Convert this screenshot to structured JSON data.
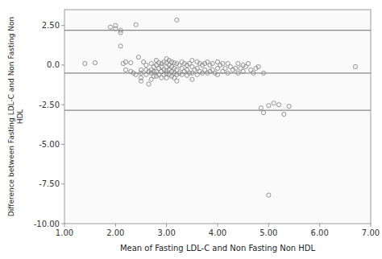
{
  "chart_data": {
    "type": "scatter",
    "title": "",
    "xlabel": "Mean of Fasting LDL-C and Non Fasting Non HDL",
    "ylabel": "Difference between Fasting LDL-C and Non Fasting Non\nHDL",
    "xlim": [
      1.0,
      7.0
    ],
    "ylim": [
      -10.0,
      3.5
    ],
    "xticks": [
      {
        "value": 1.0,
        "label": "1.00"
      },
      {
        "value": 2.0,
        "label": "2.00"
      },
      {
        "value": 3.0,
        "label": "3.00"
      },
      {
        "value": 4.0,
        "label": "4.00"
      },
      {
        "value": 5.0,
        "label": "5.00"
      },
      {
        "value": 6.0,
        "label": "6.00"
      },
      {
        "value": 7.0,
        "label": "7.00"
      }
    ],
    "yticks": [
      {
        "value": -10.0,
        "label": "-10.00"
      },
      {
        "value": -7.5,
        "label": "-7.50"
      },
      {
        "value": -5.0,
        "label": "-5.00"
      },
      {
        "value": -2.5,
        "label": "-2.50"
      },
      {
        "value": 0.0,
        "label": "0.0"
      },
      {
        "value": 2.5,
        "label": "2.50"
      }
    ],
    "grid": false,
    "color": "#888888",
    "marker": "open-circle",
    "hlines": [
      2.2,
      -0.5,
      -2.85
    ],
    "x": [
      1.4,
      1.6,
      1.9,
      2.0,
      2.0,
      2.1,
      2.1,
      2.1,
      2.15,
      2.2,
      2.2,
      2.3,
      2.3,
      2.35,
      2.4,
      2.4,
      2.45,
      2.5,
      2.5,
      2.5,
      2.5,
      2.55,
      2.6,
      2.6,
      2.6,
      2.65,
      2.65,
      2.7,
      2.7,
      2.7,
      2.7,
      2.75,
      2.75,
      2.75,
      2.8,
      2.8,
      2.8,
      2.8,
      2.85,
      2.85,
      2.85,
      2.9,
      2.9,
      2.9,
      2.9,
      2.95,
      2.95,
      2.95,
      3.0,
      3.0,
      3.0,
      3.0,
      3.0,
      3.0,
      3.05,
      3.05,
      3.05,
      3.05,
      3.1,
      3.1,
      3.1,
      3.1,
      3.15,
      3.15,
      3.15,
      3.15,
      3.2,
      3.2,
      3.2,
      3.2,
      3.25,
      3.25,
      3.3,
      3.3,
      3.3,
      3.35,
      3.35,
      3.4,
      3.4,
      3.4,
      3.45,
      3.45,
      3.5,
      3.5,
      3.5,
      3.5,
      3.55,
      3.6,
      3.6,
      3.6,
      3.65,
      3.65,
      3.7,
      3.7,
      3.75,
      3.75,
      3.8,
      3.8,
      3.85,
      3.85,
      3.9,
      3.9,
      3.95,
      4.0,
      4.0,
      4.0,
      4.05,
      4.1,
      4.1,
      4.15,
      4.2,
      4.2,
      4.25,
      4.3,
      4.35,
      4.4,
      4.4,
      4.45,
      4.5,
      4.5,
      4.55,
      4.6,
      4.65,
      4.7,
      4.75,
      4.8,
      4.85,
      4.9,
      5.0,
      5.1,
      5.2,
      5.3,
      5.4,
      6.7,
      3.2,
      5.0,
      4.9
    ],
    "values": [
      0.1,
      0.15,
      2.4,
      2.5,
      2.3,
      2.2,
      2.05,
      1.2,
      0.1,
      0.2,
      -0.3,
      0.15,
      -0.4,
      -0.5,
      -0.6,
      2.55,
      0.5,
      -0.3,
      -0.5,
      -0.8,
      -1.0,
      0.2,
      0.0,
      -0.3,
      -0.6,
      -0.4,
      -1.2,
      0.1,
      -0.3,
      -0.5,
      -0.9,
      -0.1,
      -0.4,
      -0.7,
      0.3,
      0.0,
      -0.4,
      -0.7,
      0.15,
      -0.2,
      -0.6,
      0.1,
      -0.1,
      -0.4,
      -0.8,
      0.2,
      -0.3,
      -0.6,
      0.4,
      0.15,
      -0.1,
      -0.35,
      -0.55,
      -0.8,
      0.3,
      0.0,
      -0.3,
      -0.6,
      0.2,
      -0.1,
      -0.4,
      -0.7,
      0.15,
      -0.2,
      -0.5,
      -0.8,
      0.1,
      -0.3,
      -0.6,
      -1.0,
      0.0,
      -0.5,
      0.2,
      -0.2,
      -0.6,
      0.1,
      -0.4,
      0.0,
      -0.3,
      -0.65,
      0.1,
      -0.5,
      0.3,
      -0.1,
      -0.5,
      -0.9,
      -0.3,
      0.2,
      -0.2,
      -0.6,
      0.1,
      -0.4,
      0.0,
      -0.5,
      0.1,
      -0.3,
      0.2,
      -0.5,
      0.0,
      -0.4,
      0.1,
      -0.3,
      -0.5,
      0.2,
      -0.2,
      -0.6,
      0.0,
      0.1,
      -0.4,
      -0.2,
      0.1,
      -0.5,
      -0.1,
      -0.3,
      -0.2,
      0.1,
      -0.5,
      -0.2,
      0.0,
      -0.4,
      -0.1,
      0.1,
      -0.3,
      -0.5,
      -0.2,
      -0.1,
      -2.7,
      -0.5,
      -2.55,
      -2.4,
      -2.5,
      -3.1,
      -2.6,
      -0.1,
      2.85,
      -8.2,
      -3.0
    ]
  }
}
